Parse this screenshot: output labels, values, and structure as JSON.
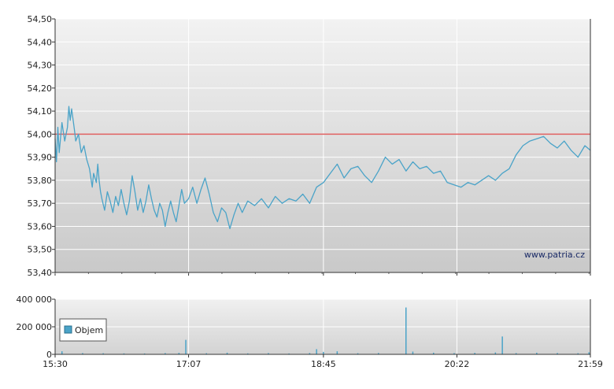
{
  "chart_data": [
    {
      "type": "line",
      "title": "",
      "xlabel": "",
      "ylabel": "",
      "x_ticks": [
        "15:30",
        "17:07",
        "18:45",
        "20:22",
        "21:59"
      ],
      "y_ticks": [
        "53,40",
        "53,50",
        "53,60",
        "53,70",
        "53,80",
        "53,90",
        "54,00",
        "54,10",
        "54,20",
        "54,30",
        "54,40",
        "54,50"
      ],
      "ylim": [
        53.4,
        54.5
      ],
      "xlim": [
        "15:30",
        "21:59"
      ],
      "reference_line": {
        "value": 54.0,
        "color": "#e06060"
      },
      "grid": true,
      "series": [
        {
          "name": "",
          "color": "#4aa3c8",
          "points": [
            [
              "15:30",
              53.98
            ],
            [
              "15:31",
              53.88
            ],
            [
              "15:32",
              54.03
            ],
            [
              "15:33",
              53.92
            ],
            [
              "15:35",
              54.05
            ],
            [
              "15:37",
              53.97
            ],
            [
              "15:39",
              54.03
            ],
            [
              "15:40",
              54.12
            ],
            [
              "15:41",
              54.06
            ],
            [
              "15:42",
              54.11
            ],
            [
              "15:44",
              54.02
            ],
            [
              "15:45",
              53.97
            ],
            [
              "15:47",
              54.0
            ],
            [
              "15:49",
              53.92
            ],
            [
              "15:51",
              53.95
            ],
            [
              "15:53",
              53.89
            ],
            [
              "15:55",
              53.85
            ],
            [
              "15:57",
              53.77
            ],
            [
              "15:58",
              53.83
            ],
            [
              "16:00",
              53.79
            ],
            [
              "16:01",
              53.87
            ],
            [
              "16:02",
              53.8
            ],
            [
              "16:03",
              53.75
            ],
            [
              "16:04",
              53.72
            ],
            [
              "16:06",
              53.67
            ],
            [
              "16:08",
              53.75
            ],
            [
              "16:10",
              53.71
            ],
            [
              "16:12",
              53.66
            ],
            [
              "16:14",
              53.73
            ],
            [
              "16:16",
              53.69
            ],
            [
              "16:18",
              53.76
            ],
            [
              "16:20",
              53.7
            ],
            [
              "16:22",
              53.65
            ],
            [
              "16:24",
              53.71
            ],
            [
              "16:26",
              53.82
            ],
            [
              "16:28",
              53.75
            ],
            [
              "16:30",
              53.67
            ],
            [
              "16:32",
              53.72
            ],
            [
              "16:34",
              53.66
            ],
            [
              "16:36",
              53.71
            ],
            [
              "16:38",
              53.78
            ],
            [
              "16:40",
              53.72
            ],
            [
              "16:42",
              53.67
            ],
            [
              "16:44",
              53.64
            ],
            [
              "16:46",
              53.7
            ],
            [
              "16:48",
              53.67
            ],
            [
              "16:50",
              53.6
            ],
            [
              "16:52",
              53.66
            ],
            [
              "16:54",
              53.71
            ],
            [
              "16:56",
              53.66
            ],
            [
              "16:58",
              53.62
            ],
            [
              "17:00",
              53.69
            ],
            [
              "17:02",
              53.76
            ],
            [
              "17:04",
              53.7
            ],
            [
              "17:07",
              53.72
            ],
            [
              "17:10",
              53.77
            ],
            [
              "17:13",
              53.7
            ],
            [
              "17:16",
              53.76
            ],
            [
              "17:19",
              53.81
            ],
            [
              "17:22",
              53.74
            ],
            [
              "17:25",
              53.66
            ],
            [
              "17:28",
              53.62
            ],
            [
              "17:31",
              53.68
            ],
            [
              "17:34",
              53.66
            ],
            [
              "17:37",
              53.59
            ],
            [
              "17:40",
              53.65
            ],
            [
              "17:43",
              53.7
            ],
            [
              "17:46",
              53.66
            ],
            [
              "17:50",
              53.71
            ],
            [
              "17:55",
              53.69
            ],
            [
              "18:00",
              53.72
            ],
            [
              "18:05",
              53.68
            ],
            [
              "18:10",
              53.73
            ],
            [
              "18:15",
              53.7
            ],
            [
              "18:20",
              53.72
            ],
            [
              "18:25",
              53.71
            ],
            [
              "18:30",
              53.74
            ],
            [
              "18:35",
              53.7
            ],
            [
              "18:40",
              53.77
            ],
            [
              "18:45",
              53.79
            ],
            [
              "18:50",
              53.83
            ],
            [
              "18:55",
              53.87
            ],
            [
              "19:00",
              53.81
            ],
            [
              "19:05",
              53.85
            ],
            [
              "19:10",
              53.86
            ],
            [
              "19:15",
              53.82
            ],
            [
              "19:20",
              53.79
            ],
            [
              "19:25",
              53.84
            ],
            [
              "19:30",
              53.9
            ],
            [
              "19:35",
              53.87
            ],
            [
              "19:40",
              53.89
            ],
            [
              "19:45",
              53.84
            ],
            [
              "19:50",
              53.88
            ],
            [
              "19:55",
              53.85
            ],
            [
              "20:00",
              53.86
            ],
            [
              "20:05",
              53.83
            ],
            [
              "20:10",
              53.84
            ],
            [
              "20:15",
              53.79
            ],
            [
              "20:20",
              53.78
            ],
            [
              "20:25",
              53.77
            ],
            [
              "20:30",
              53.79
            ],
            [
              "20:35",
              53.78
            ],
            [
              "20:40",
              53.8
            ],
            [
              "20:45",
              53.82
            ],
            [
              "20:50",
              53.8
            ],
            [
              "20:55",
              53.83
            ],
            [
              "21:00",
              53.85
            ],
            [
              "21:05",
              53.91
            ],
            [
              "21:10",
              53.95
            ],
            [
              "21:15",
              53.97
            ],
            [
              "21:20",
              53.98
            ],
            [
              "21:25",
              53.99
            ],
            [
              "21:30",
              53.96
            ],
            [
              "21:35",
              53.94
            ],
            [
              "21:40",
              53.97
            ],
            [
              "21:45",
              53.93
            ],
            [
              "21:50",
              53.9
            ],
            [
              "21:55",
              53.95
            ],
            [
              "21:59",
              53.93
            ]
          ]
        }
      ]
    },
    {
      "type": "bar",
      "title": "",
      "xlabel": "",
      "ylabel": "",
      "x_ticks": [
        "15:30",
        "17:07",
        "18:45",
        "20:22",
        "21:59"
      ],
      "y_ticks": [
        "0",
        "200 000",
        "400 000"
      ],
      "ylim": [
        0,
        400000
      ],
      "grid": true,
      "legend": {
        "position": "bottom-left",
        "entries": [
          "Objem"
        ]
      },
      "series": [
        {
          "name": "Objem",
          "color": "#4aa3c8",
          "points": [
            [
              "15:35",
              22000
            ],
            [
              "15:50",
              9000
            ],
            [
              "16:05",
              8000
            ],
            [
              "16:20",
              7000
            ],
            [
              "16:35",
              6000
            ],
            [
              "16:50",
              9000
            ],
            [
              "17:00",
              11000
            ],
            [
              "17:05",
              105000
            ],
            [
              "17:20",
              8000
            ],
            [
              "17:35",
              12000
            ],
            [
              "17:50",
              7000
            ],
            [
              "18:05",
              9000
            ],
            [
              "18:20",
              6000
            ],
            [
              "18:35",
              10000
            ],
            [
              "18:40",
              38000
            ],
            [
              "18:45",
              18000
            ],
            [
              "18:55",
              22000
            ],
            [
              "19:10",
              8000
            ],
            [
              "19:25",
              10000
            ],
            [
              "19:45",
              340000
            ],
            [
              "19:50",
              20000
            ],
            [
              "20:05",
              12000
            ],
            [
              "20:20",
              9000
            ],
            [
              "20:35",
              11000
            ],
            [
              "20:50",
              14000
            ],
            [
              "20:55",
              130000
            ],
            [
              "21:05",
              9000
            ],
            [
              "21:20",
              12000
            ],
            [
              "21:35",
              10000
            ],
            [
              "21:50",
              8000
            ],
            [
              "21:58",
              15000
            ]
          ]
        }
      ]
    }
  ],
  "watermark": "www.patria.cz"
}
